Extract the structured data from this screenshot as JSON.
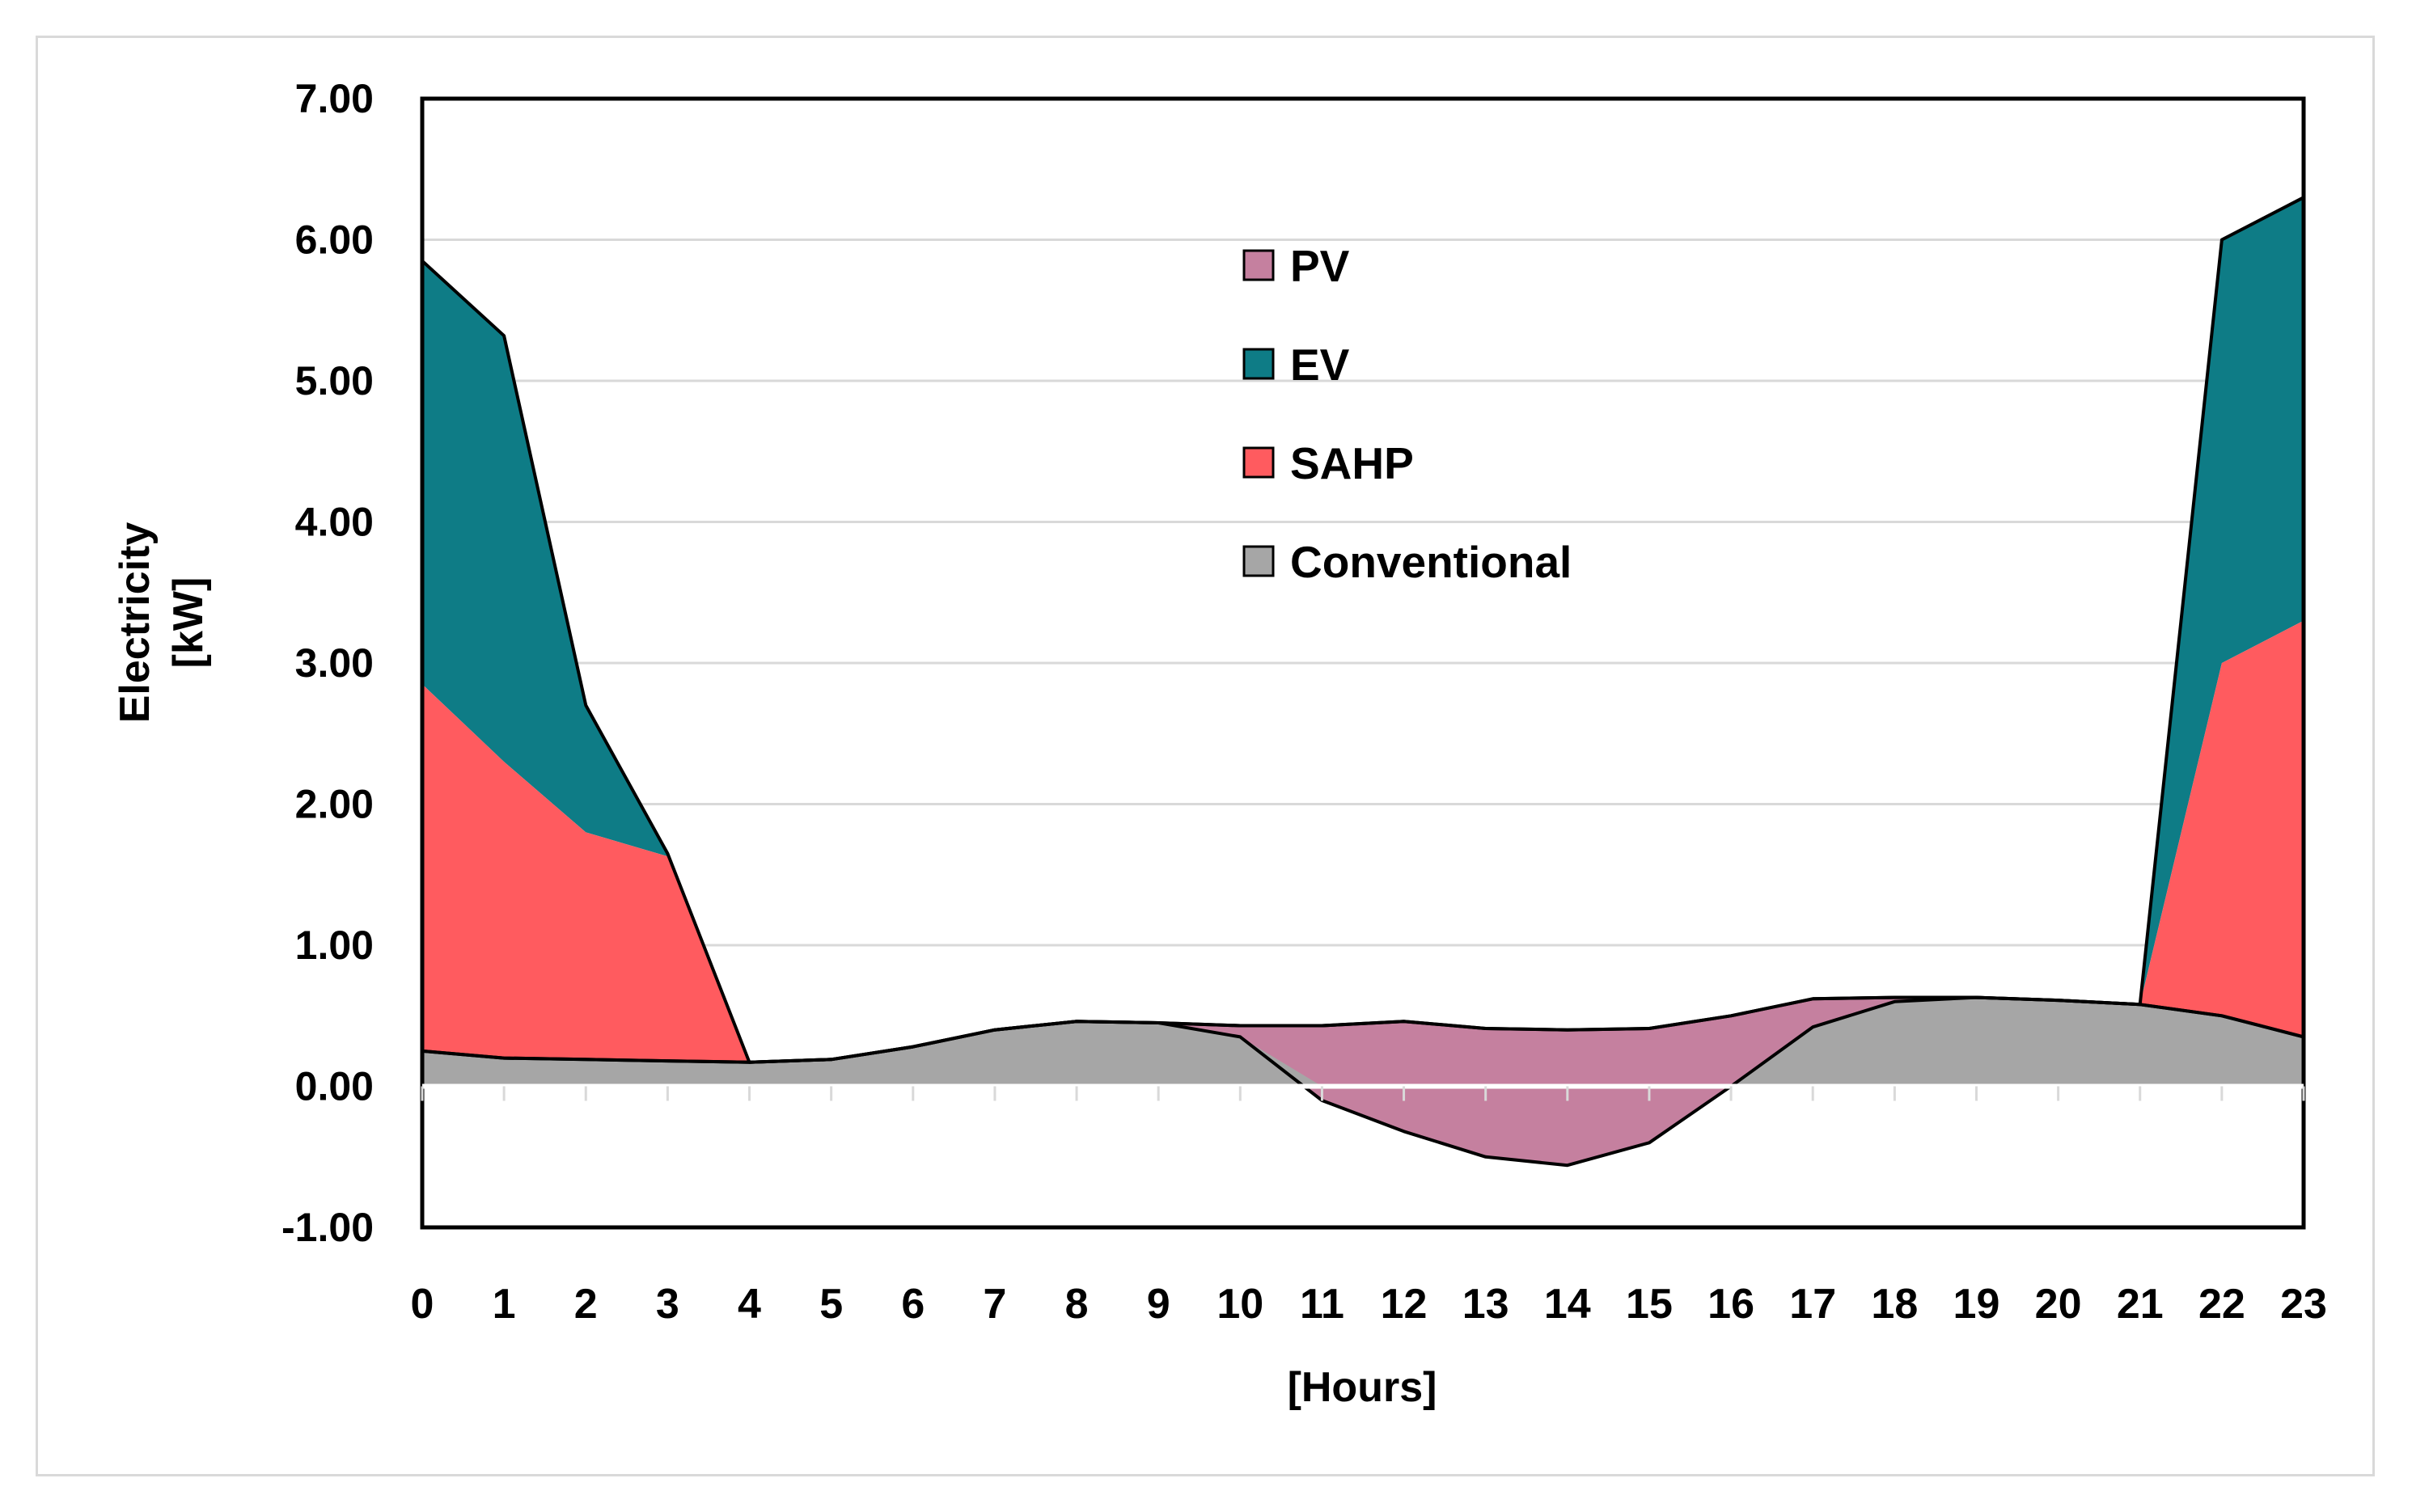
{
  "chart_data": {
    "type": "area",
    "title": "",
    "xlabel": "[Hours]",
    "ylabel": [
      "Electricity",
      "[kW]"
    ],
    "ylim": [
      -1.0,
      7.0
    ],
    "yticks": [
      "7.00",
      "6.00",
      "5.00",
      "4.00",
      "3.00",
      "2.00",
      "1.00",
      "0.00",
      "-1.00"
    ],
    "ytick_values": [
      7,
      6,
      5,
      4,
      3,
      2,
      1,
      0,
      -1
    ],
    "categories": [
      "0",
      "1",
      "2",
      "3",
      "4",
      "5",
      "6",
      "7",
      "8",
      "9",
      "10",
      "11",
      "12",
      "13",
      "14",
      "15",
      "16",
      "17",
      "18",
      "19",
      "20",
      "21",
      "22",
      "23"
    ],
    "legend_position": "top-center",
    "grid": true,
    "series": [
      {
        "name": "PV",
        "color": "#c5809f",
        "boundary_upper": [
          0.25,
          0.2,
          0.19,
          0.18,
          0.17,
          0.19,
          0.28,
          0.4,
          0.46,
          0.45,
          0.43,
          0.43,
          0.46,
          0.41,
          0.4,
          0.41,
          0.5,
          0.62,
          0.63,
          0.63,
          0.61,
          0.58,
          0.5,
          0.35
        ],
        "boundary_lower": [
          0.25,
          0.2,
          0.19,
          0.18,
          0.17,
          0.19,
          0.28,
          0.4,
          0.46,
          0.45,
          0.35,
          -0.1,
          -0.32,
          -0.5,
          -0.56,
          -0.4,
          0.0,
          0.42,
          0.6,
          0.63,
          0.61,
          0.58,
          0.5,
          0.35
        ]
      },
      {
        "name": "EV",
        "color": "#0e7c86",
        "boundary_upper": [
          5.85,
          5.32,
          2.7,
          1.65,
          0.17,
          0.19,
          0.28,
          0.4,
          0.46,
          0.45,
          0.43,
          0.43,
          0.46,
          0.41,
          0.4,
          0.41,
          0.5,
          0.62,
          0.63,
          0.63,
          0.61,
          0.58,
          6.0,
          6.3
        ],
        "boundary_lower": [
          2.85,
          2.3,
          1.8,
          1.63,
          0.17,
          0.19,
          0.28,
          0.4,
          0.46,
          0.45,
          0.43,
          0.43,
          0.46,
          0.41,
          0.4,
          0.41,
          0.5,
          0.62,
          0.63,
          0.63,
          0.61,
          0.58,
          3.0,
          3.3
        ]
      },
      {
        "name": "SAHP",
        "color": "#ff5b5f",
        "boundary_upper": [
          2.85,
          2.3,
          1.8,
          1.63,
          0.17,
          0.19,
          0.28,
          0.4,
          0.46,
          0.45,
          0.43,
          0.43,
          0.46,
          0.41,
          0.4,
          0.41,
          0.5,
          0.62,
          0.63,
          0.63,
          0.61,
          0.58,
          3.0,
          3.3
        ],
        "boundary_lower": [
          0.25,
          0.2,
          0.19,
          0.18,
          0.17,
          0.19,
          0.28,
          0.4,
          0.46,
          0.45,
          0.43,
          0.43,
          0.46,
          0.41,
          0.4,
          0.41,
          0.5,
          0.62,
          0.63,
          0.63,
          0.61,
          0.58,
          0.5,
          0.35
        ]
      },
      {
        "name": "Conventional",
        "color": "#a6a6a6",
        "values": [
          0.25,
          0.2,
          0.19,
          0.18,
          0.17,
          0.19,
          0.28,
          0.4,
          0.46,
          0.45,
          0.35,
          0.0,
          0.0,
          0.0,
          0.0,
          0.0,
          0.0,
          0.42,
          0.6,
          0.63,
          0.61,
          0.58,
          0.5,
          0.35
        ]
      }
    ],
    "legend": [
      {
        "label": "PV",
        "color": "#c5809f"
      },
      {
        "label": "EV",
        "color": "#0e7c86"
      },
      {
        "label": "SAHP",
        "color": "#ff5b5f"
      },
      {
        "label": "Conventional",
        "color": "#a6a6a6"
      }
    ]
  },
  "colors": {
    "gridline": "#d9d9d9",
    "axis": "#000000",
    "outline": "#000000"
  }
}
